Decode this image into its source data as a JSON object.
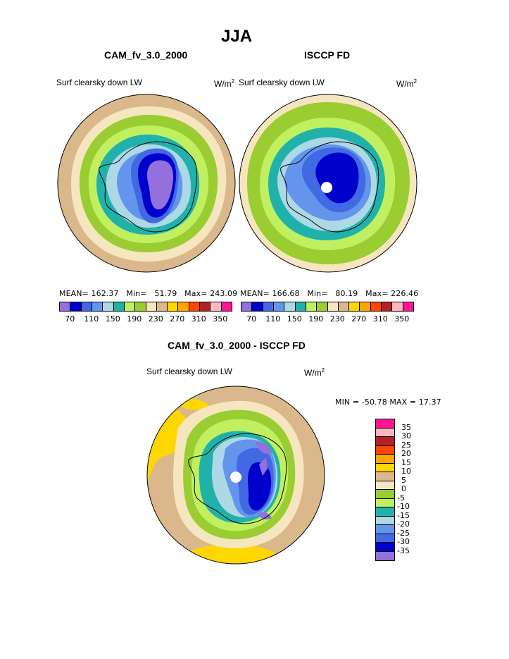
{
  "figure": {
    "title": "JJA"
  },
  "panel_model": {
    "title": "CAM_fv_3.0_2000",
    "variable": "Surf clearsky down LW",
    "units": "W/m",
    "units_exp": "2",
    "stats": {
      "mean_label": "MEAN=",
      "mean": "162.37",
      "min_label": "Min=",
      "min": "51.79",
      "max_label": "Max=",
      "max": "243.09"
    }
  },
  "panel_obs": {
    "title": "ISCCP FD",
    "variable": "Surf clearsky down LW",
    "units": "W/m",
    "units_exp": "2",
    "stats": {
      "mean_label": "MEAN=",
      "mean": "166.68",
      "min_label": "Min=",
      "min": "80.19",
      "max_label": "Max=",
      "max": "226.46"
    }
  },
  "panel_diff": {
    "title": "CAM_fv_3.0_2000 - ISCCP FD",
    "variable": "Surf clearsky down LW",
    "units": "W/m",
    "units_exp": "2",
    "minmax": "MIN = -50.78 MAX =  17.37"
  },
  "colorbar_abs": {
    "ticks": [
      "70",
      "110",
      "150",
      "190",
      "230",
      "270",
      "310",
      "350"
    ],
    "colors": [
      "#9370db",
      "#0000cd",
      "#4169e1",
      "#6495ed",
      "#add8e6",
      "#20b2aa",
      "#c0f060",
      "#9acd32",
      "#f5e6c0",
      "#dab88b",
      "#ffd700",
      "#ffa500",
      "#ff4500",
      "#b22222",
      "#ffb6c1",
      "#ff1493"
    ]
  },
  "colorbar_diff": {
    "ticks": [
      "35",
      "30",
      "25",
      "20",
      "15",
      "10",
      "5",
      "0",
      "-5",
      "-10",
      "-15",
      "-20",
      "-25",
      "-30",
      "-35"
    ],
    "colors": [
      "#ff1493",
      "#ffb6c1",
      "#b22222",
      "#ff4500",
      "#ffa500",
      "#ffd700",
      "#dab88b",
      "#f5e6c0",
      "#9acd32",
      "#c0f060",
      "#20b2aa",
      "#add8e6",
      "#6495ed",
      "#4169e1",
      "#0000cd",
      "#9370db"
    ]
  }
}
